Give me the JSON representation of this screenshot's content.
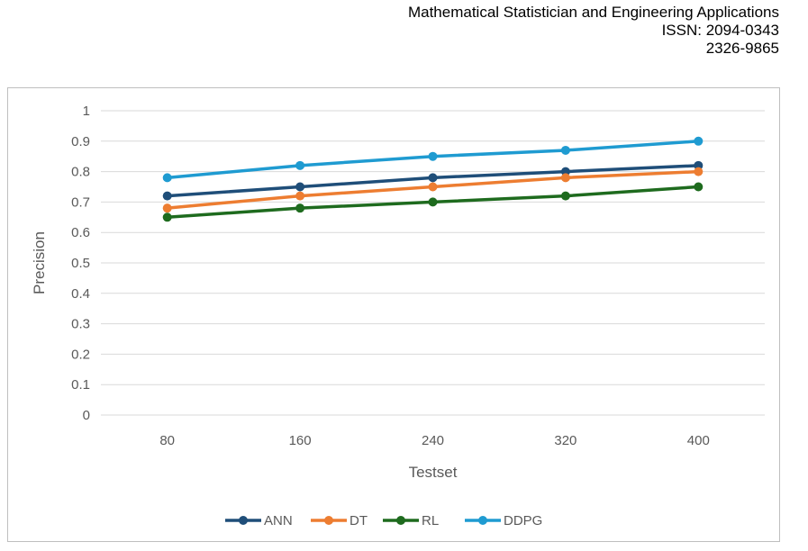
{
  "header": {
    "journal": "Mathematical Statistician and Engineering Applications",
    "issn": "ISSN: 2094-0343",
    "eissn": "2326-9865"
  },
  "chart_data": {
    "type": "line",
    "title": "",
    "xlabel": "Testset",
    "ylabel": "Precision",
    "categories": [
      "80",
      "160",
      "240",
      "320",
      "400"
    ],
    "ylim": [
      0,
      1
    ],
    "yticks": [
      "0",
      "0.1",
      "0.2",
      "0.3",
      "0.4",
      "0.5",
      "0.6",
      "0.7",
      "0.8",
      "0.9",
      "1"
    ],
    "grid": true,
    "legend_position": "bottom",
    "series": [
      {
        "name": "ANN",
        "color": "#1f4e79",
        "values": [
          0.72,
          0.75,
          0.78,
          0.8,
          0.82
        ]
      },
      {
        "name": "DT",
        "color": "#ed7d31",
        "values": [
          0.68,
          0.72,
          0.75,
          0.78,
          0.8
        ]
      },
      {
        "name": "RL",
        "color": "#1e6b1e",
        "values": [
          0.65,
          0.68,
          0.7,
          0.72,
          0.75
        ]
      },
      {
        "name": "DDPG",
        "color": "#1f9bd1",
        "values": [
          0.78,
          0.82,
          0.85,
          0.87,
          0.9
        ]
      }
    ]
  }
}
